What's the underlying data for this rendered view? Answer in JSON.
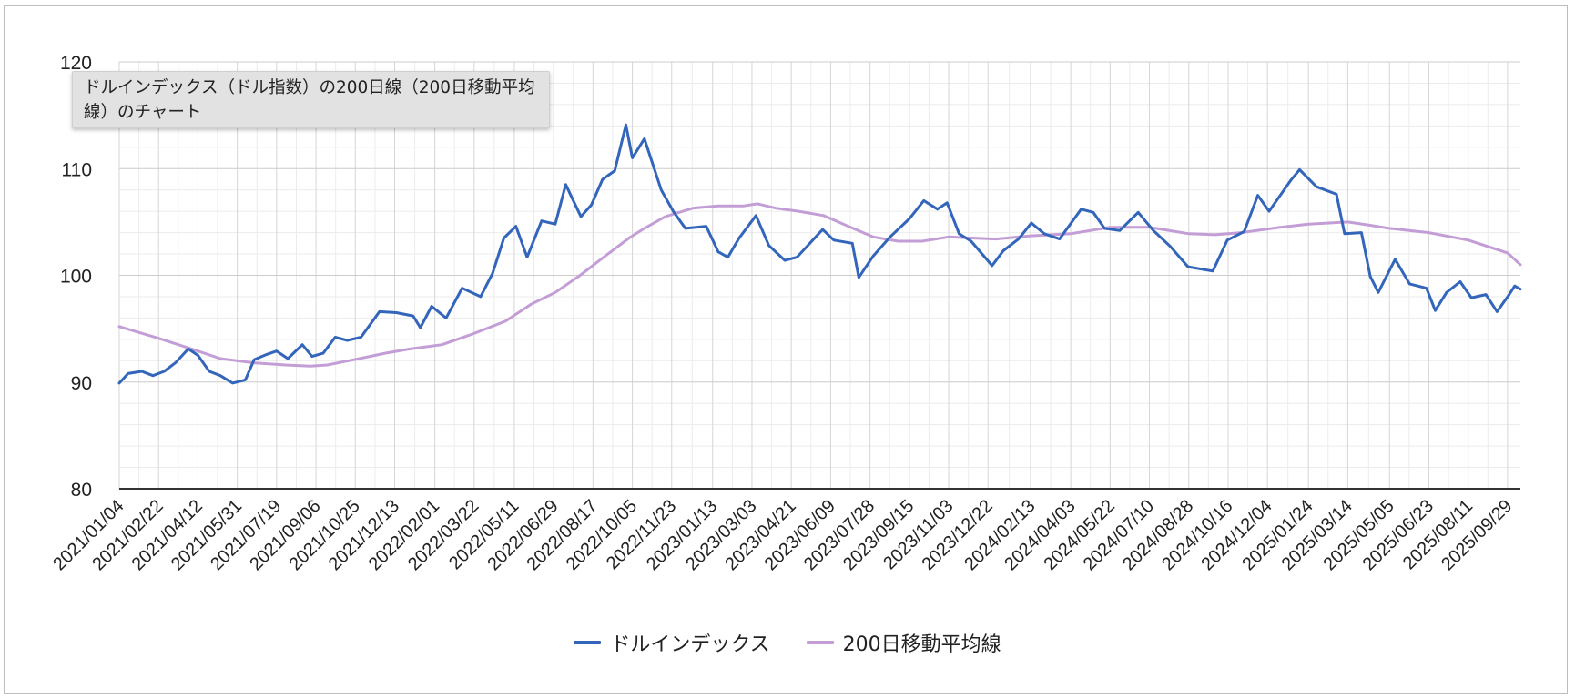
{
  "tooltip": {
    "text": "ドルインデックス（ドル指数）の200日線（200日移動平均線）のチャート"
  },
  "legend": [
    {
      "label": "ドルインデックス",
      "color": "#3366bb"
    },
    {
      "label": "200日移動平均線",
      "color": "#c39ed6"
    }
  ],
  "chart_data": {
    "type": "line",
    "title": "",
    "xlabel": "",
    "ylabel": "",
    "ylim": [
      80,
      120
    ],
    "yticks": [
      80,
      90,
      100,
      110,
      120
    ],
    "grid": true,
    "legend_position": "bottom",
    "x_tick_labels": [
      "2021/01/04",
      "2021/02/22",
      "2021/04/12",
      "2021/05/31",
      "2021/07/19",
      "2021/09/06",
      "2021/10/25",
      "2021/12/13",
      "2022/02/01",
      "2022/03/22",
      "2022/05/11",
      "2022/06/29",
      "2022/08/17",
      "2022/10/05",
      "2022/11/23",
      "2023/01/13",
      "2023/03/03",
      "2023/04/21",
      "2023/06/09",
      "2023/07/28",
      "2023/09/15",
      "2023/11/03",
      "2023/12/22",
      "2024/02/13",
      "2024/04/03",
      "2024/05/22",
      "2024/07/10",
      "2024/08/28",
      "2024/10/16",
      "2024/12/04",
      "2025/01/24",
      "2025/03/14",
      "2025/05/05",
      "2025/06/23",
      "2025/08/11",
      "2025/09/29"
    ],
    "x_start": "2021-01-04",
    "x_end": "2025-10-15",
    "series": [
      {
        "name": "ドルインデックス",
        "color": "#3366bb",
        "points": [
          [
            "2021-01-04",
            89.9
          ],
          [
            "2021-01-15",
            90.8
          ],
          [
            "2021-02-01",
            91.0
          ],
          [
            "2021-02-15",
            90.6
          ],
          [
            "2021-03-01",
            91.0
          ],
          [
            "2021-03-15",
            91.8
          ],
          [
            "2021-03-31",
            93.1
          ],
          [
            "2021-04-12",
            92.5
          ],
          [
            "2021-04-26",
            91.0
          ],
          [
            "2021-05-10",
            90.6
          ],
          [
            "2021-05-25",
            89.9
          ],
          [
            "2021-06-10",
            90.2
          ],
          [
            "2021-06-21",
            92.1
          ],
          [
            "2021-07-07",
            92.6
          ],
          [
            "2021-07-19",
            92.9
          ],
          [
            "2021-08-02",
            92.2
          ],
          [
            "2021-08-20",
            93.5
          ],
          [
            "2021-09-01",
            92.4
          ],
          [
            "2021-09-15",
            92.7
          ],
          [
            "2021-09-30",
            94.2
          ],
          [
            "2021-10-15",
            93.9
          ],
          [
            "2021-11-01",
            94.2
          ],
          [
            "2021-11-24",
            96.6
          ],
          [
            "2021-12-15",
            96.5
          ],
          [
            "2022-01-05",
            96.2
          ],
          [
            "2022-01-14",
            95.1
          ],
          [
            "2022-01-28",
            97.1
          ],
          [
            "2022-02-15",
            96.0
          ],
          [
            "2022-03-07",
            98.8
          ],
          [
            "2022-03-30",
            98.0
          ],
          [
            "2022-04-14",
            100.2
          ],
          [
            "2022-04-28",
            103.5
          ],
          [
            "2022-05-13",
            104.6
          ],
          [
            "2022-05-27",
            101.7
          ],
          [
            "2022-06-14",
            105.1
          ],
          [
            "2022-07-01",
            104.8
          ],
          [
            "2022-07-14",
            108.5
          ],
          [
            "2022-08-02",
            105.5
          ],
          [
            "2022-08-15",
            106.6
          ],
          [
            "2022-08-29",
            109.0
          ],
          [
            "2022-09-13",
            109.8
          ],
          [
            "2022-09-27",
            114.1
          ],
          [
            "2022-10-05",
            111.0
          ],
          [
            "2022-10-20",
            112.8
          ],
          [
            "2022-11-10",
            108.0
          ],
          [
            "2022-11-25",
            106.0
          ],
          [
            "2022-12-10",
            104.4
          ],
          [
            "2023-01-05",
            104.6
          ],
          [
            "2023-01-20",
            102.2
          ],
          [
            "2023-02-01",
            101.7
          ],
          [
            "2023-02-15",
            103.5
          ],
          [
            "2023-03-08",
            105.6
          ],
          [
            "2023-03-24",
            102.8
          ],
          [
            "2023-04-13",
            101.4
          ],
          [
            "2023-04-28",
            101.7
          ],
          [
            "2023-05-30",
            104.3
          ],
          [
            "2023-06-13",
            103.3
          ],
          [
            "2023-07-06",
            103.0
          ],
          [
            "2023-07-14",
            99.8
          ],
          [
            "2023-08-01",
            101.8
          ],
          [
            "2023-08-22",
            103.6
          ],
          [
            "2023-09-15",
            105.3
          ],
          [
            "2023-10-03",
            107.0
          ],
          [
            "2023-10-20",
            106.2
          ],
          [
            "2023-11-01",
            106.8
          ],
          [
            "2023-11-16",
            103.9
          ],
          [
            "2023-12-01",
            103.2
          ],
          [
            "2023-12-27",
            100.9
          ],
          [
            "2024-01-10",
            102.3
          ],
          [
            "2024-01-29",
            103.4
          ],
          [
            "2024-02-14",
            104.9
          ],
          [
            "2024-03-01",
            103.9
          ],
          [
            "2024-03-20",
            103.4
          ],
          [
            "2024-04-16",
            106.2
          ],
          [
            "2024-05-01",
            105.9
          ],
          [
            "2024-05-15",
            104.4
          ],
          [
            "2024-06-03",
            104.2
          ],
          [
            "2024-06-26",
            105.9
          ],
          [
            "2024-07-15",
            104.2
          ],
          [
            "2024-08-05",
            102.7
          ],
          [
            "2024-08-27",
            100.8
          ],
          [
            "2024-09-27",
            100.4
          ],
          [
            "2024-10-15",
            103.3
          ],
          [
            "2024-11-05",
            104.1
          ],
          [
            "2024-11-22",
            107.5
          ],
          [
            "2024-12-06",
            106.0
          ],
          [
            "2025-01-02",
            108.9
          ],
          [
            "2025-01-13",
            109.9
          ],
          [
            "2025-02-03",
            108.3
          ],
          [
            "2025-02-28",
            107.6
          ],
          [
            "2025-03-10",
            103.9
          ],
          [
            "2025-03-31",
            104.0
          ],
          [
            "2025-04-11",
            99.9
          ],
          [
            "2025-04-21",
            98.4
          ],
          [
            "2025-05-12",
            101.5
          ],
          [
            "2025-05-30",
            99.2
          ],
          [
            "2025-06-20",
            98.8
          ],
          [
            "2025-07-01",
            96.7
          ],
          [
            "2025-07-15",
            98.4
          ],
          [
            "2025-08-01",
            99.4
          ],
          [
            "2025-08-15",
            97.9
          ],
          [
            "2025-09-02",
            98.2
          ],
          [
            "2025-09-16",
            96.6
          ],
          [
            "2025-10-01",
            98.2
          ],
          [
            "2025-10-08",
            99.0
          ],
          [
            "2025-10-15",
            98.7
          ]
        ]
      },
      {
        "name": "200日移動平均線",
        "color": "#c39ed6",
        "points": [
          [
            "2021-01-04",
            95.2
          ],
          [
            "2021-02-22",
            94.1
          ],
          [
            "2021-03-31",
            93.2
          ],
          [
            "2021-05-10",
            92.2
          ],
          [
            "2021-06-20",
            91.8
          ],
          [
            "2021-07-30",
            91.6
          ],
          [
            "2021-08-30",
            91.5
          ],
          [
            "2021-09-20",
            91.6
          ],
          [
            "2021-10-30",
            92.2
          ],
          [
            "2021-12-01",
            92.7
          ],
          [
            "2022-01-01",
            93.1
          ],
          [
            "2022-02-10",
            93.5
          ],
          [
            "2022-03-20",
            94.5
          ],
          [
            "2022-04-30",
            95.7
          ],
          [
            "2022-06-01",
            97.3
          ],
          [
            "2022-07-01",
            98.4
          ],
          [
            "2022-08-01",
            100.0
          ],
          [
            "2022-09-01",
            101.8
          ],
          [
            "2022-10-01",
            103.5
          ],
          [
            "2022-10-20",
            104.4
          ],
          [
            "2022-11-15",
            105.5
          ],
          [
            "2022-12-20",
            106.3
          ],
          [
            "2023-01-20",
            106.5
          ],
          [
            "2023-02-20",
            106.5
          ],
          [
            "2023-03-10",
            106.7
          ],
          [
            "2023-04-01",
            106.3
          ],
          [
            "2023-04-30",
            106.0
          ],
          [
            "2023-05-31",
            105.6
          ],
          [
            "2023-07-01",
            104.6
          ],
          [
            "2023-08-01",
            103.6
          ],
          [
            "2023-09-01",
            103.2
          ],
          [
            "2023-10-01",
            103.2
          ],
          [
            "2023-11-03",
            103.6
          ],
          [
            "2023-12-01",
            103.5
          ],
          [
            "2024-01-01",
            103.4
          ],
          [
            "2024-02-13",
            103.7
          ],
          [
            "2024-04-03",
            103.9
          ],
          [
            "2024-05-22",
            104.5
          ],
          [
            "2024-07-10",
            104.5
          ],
          [
            "2024-08-28",
            103.9
          ],
          [
            "2024-09-30",
            103.8
          ],
          [
            "2024-11-01",
            104.0
          ],
          [
            "2024-12-20",
            104.5
          ],
          [
            "2025-01-24",
            104.8
          ],
          [
            "2025-03-14",
            105.0
          ],
          [
            "2025-04-10",
            104.7
          ],
          [
            "2025-05-05",
            104.4
          ],
          [
            "2025-06-23",
            104.0
          ],
          [
            "2025-08-11",
            103.3
          ],
          [
            "2025-09-29",
            102.1
          ],
          [
            "2025-10-15",
            101.0
          ]
        ]
      }
    ]
  }
}
